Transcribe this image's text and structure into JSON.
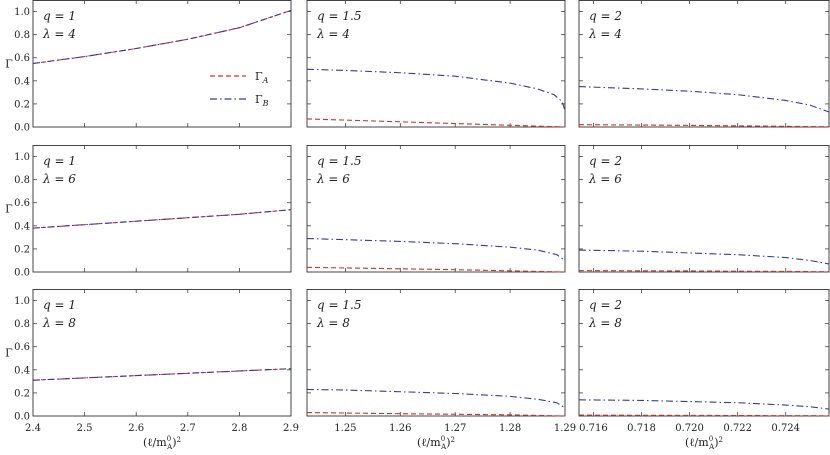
{
  "chart_data": {
    "type": "line",
    "ylabel": "Γ",
    "xlabel": "(ℓ/m_A^0)^2",
    "ylim": [
      0,
      1.1
    ],
    "yticks": [
      "0.0",
      "0.2",
      "0.4",
      "0.6",
      "0.8",
      "1.0"
    ],
    "legend": {
      "placement": "inside top-right of row 1, column 1",
      "entries": [
        {
          "key": "A",
          "base": "Γ",
          "sub": "A",
          "color": "#d03030",
          "dash": "dashed"
        },
        {
          "key": "B",
          "base": "Γ",
          "sub": "B",
          "color": "#3a3a9a",
          "dash": "dash-dot"
        }
      ]
    },
    "columns": [
      {
        "q": "1",
        "xlim": [
          2.4,
          2.9
        ],
        "xticks": [
          "2.4",
          "2.5",
          "2.6",
          "2.7",
          "2.8",
          "2.9"
        ]
      },
      {
        "q": "1.5",
        "xlim": [
          1.243,
          1.29
        ],
        "xticks": [
          "1.25",
          "1.26",
          "1.27",
          "1.28",
          "1.29"
        ]
      },
      {
        "q": "2",
        "xlim": [
          0.7154,
          0.7258
        ],
        "xticks": [
          "0.716",
          "0.718",
          "0.720",
          "0.722",
          "0.724"
        ]
      }
    ],
    "panels": [
      {
        "row": 0,
        "col": 0,
        "q_label": "q = 1",
        "lambda_label": "λ = 4",
        "series": [
          {
            "name": "Γ_A",
            "x": [
              2.4,
              2.5,
              2.6,
              2.7,
              2.8,
              2.9
            ],
            "y": [
              0.55,
              0.61,
              0.68,
              0.76,
              0.86,
              1.01
            ]
          },
          {
            "name": "Γ_B",
            "x": [
              2.4,
              2.5,
              2.6,
              2.7,
              2.8,
              2.9
            ],
            "y": [
              0.55,
              0.61,
              0.68,
              0.76,
              0.86,
              1.01
            ]
          }
        ]
      },
      {
        "row": 0,
        "col": 1,
        "q_label": "q = 1.5",
        "lambda_label": "λ = 4",
        "series": [
          {
            "name": "Γ_A",
            "x": [
              1.243,
              1.25,
              1.26,
              1.27,
              1.28,
              1.285,
              1.29
            ],
            "y": [
              0.07,
              0.06,
              0.045,
              0.03,
              0.015,
              0.008,
              0.0
            ]
          },
          {
            "name": "Γ_B",
            "x": [
              1.243,
              1.25,
              1.26,
              1.27,
              1.28,
              1.285,
              1.288,
              1.2895,
              1.29
            ],
            "y": [
              0.5,
              0.49,
              0.47,
              0.44,
              0.38,
              0.33,
              0.28,
              0.22,
              0.14
            ]
          }
        ]
      },
      {
        "row": 0,
        "col": 2,
        "q_label": "q = 2",
        "lambda_label": "λ = 4",
        "series": [
          {
            "name": "Γ_A",
            "x": [
              0.7154,
              0.718,
              0.72,
              0.722,
              0.724,
              0.7258
            ],
            "y": [
              0.02,
              0.017,
              0.014,
              0.01,
              0.006,
              0.002
            ]
          },
          {
            "name": "Γ_B",
            "x": [
              0.7154,
              0.718,
              0.72,
              0.722,
              0.724,
              0.725,
              0.7258
            ],
            "y": [
              0.35,
              0.33,
              0.31,
              0.28,
              0.23,
              0.19,
              0.13
            ]
          }
        ]
      },
      {
        "row": 1,
        "col": 0,
        "q_label": "q = 1",
        "lambda_label": "λ = 6",
        "series": [
          {
            "name": "Γ_A",
            "x": [
              2.4,
              2.5,
              2.6,
              2.7,
              2.8,
              2.9
            ],
            "y": [
              0.38,
              0.41,
              0.44,
              0.47,
              0.5,
              0.54
            ]
          },
          {
            "name": "Γ_B",
            "x": [
              2.4,
              2.5,
              2.6,
              2.7,
              2.8,
              2.9
            ],
            "y": [
              0.38,
              0.41,
              0.44,
              0.47,
              0.5,
              0.54
            ]
          }
        ]
      },
      {
        "row": 1,
        "col": 1,
        "q_label": "q = 1.5",
        "lambda_label": "λ = 6",
        "series": [
          {
            "name": "Γ_A",
            "x": [
              1.243,
              1.25,
              1.26,
              1.27,
              1.28,
              1.29
            ],
            "y": [
              0.04,
              0.035,
              0.028,
              0.02,
              0.01,
              0.0
            ]
          },
          {
            "name": "Γ_B",
            "x": [
              1.243,
              1.25,
              1.26,
              1.27,
              1.28,
              1.285,
              1.2885,
              1.29
            ],
            "y": [
              0.29,
              0.28,
              0.265,
              0.245,
              0.215,
              0.19,
              0.15,
              0.1
            ]
          }
        ]
      },
      {
        "row": 1,
        "col": 2,
        "q_label": "q = 2",
        "lambda_label": "λ = 6",
        "series": [
          {
            "name": "Γ_A",
            "x": [
              0.7154,
              0.72,
              0.724,
              0.7258
            ],
            "y": [
              0.012,
              0.009,
              0.005,
              0.002
            ]
          },
          {
            "name": "Γ_B",
            "x": [
              0.7154,
              0.718,
              0.72,
              0.722,
              0.724,
              0.725,
              0.7258
            ],
            "y": [
              0.19,
              0.18,
              0.165,
              0.15,
              0.125,
              0.1,
              0.07
            ]
          }
        ]
      },
      {
        "row": 2,
        "col": 0,
        "q_label": "q = 1",
        "lambda_label": "λ = 8",
        "series": [
          {
            "name": "Γ_A",
            "x": [
              2.4,
              2.5,
              2.6,
              2.7,
              2.8,
              2.9
            ],
            "y": [
              0.31,
              0.33,
              0.35,
              0.37,
              0.39,
              0.41
            ]
          },
          {
            "name": "Γ_B",
            "x": [
              2.4,
              2.5,
              2.6,
              2.7,
              2.8,
              2.9
            ],
            "y": [
              0.31,
              0.33,
              0.35,
              0.37,
              0.39,
              0.41
            ]
          }
        ]
      },
      {
        "row": 2,
        "col": 1,
        "q_label": "q = 1.5",
        "lambda_label": "λ = 8",
        "series": [
          {
            "name": "Γ_A",
            "x": [
              1.243,
              1.26,
              1.28,
              1.29
            ],
            "y": [
              0.03,
              0.02,
              0.01,
              0.0
            ]
          },
          {
            "name": "Γ_B",
            "x": [
              1.243,
              1.25,
              1.26,
              1.27,
              1.28,
              1.285,
              1.2885,
              1.29
            ],
            "y": [
              0.23,
              0.225,
              0.21,
              0.195,
              0.17,
              0.145,
              0.115,
              0.07
            ]
          }
        ]
      },
      {
        "row": 2,
        "col": 2,
        "q_label": "q = 2",
        "lambda_label": "λ = 8",
        "series": [
          {
            "name": "Γ_A",
            "x": [
              0.7154,
              0.72,
              0.7258
            ],
            "y": [
              0.008,
              0.005,
              0.002
            ]
          },
          {
            "name": "Γ_B",
            "x": [
              0.7154,
              0.718,
              0.72,
              0.722,
              0.724,
              0.725,
              0.7258
            ],
            "y": [
              0.14,
              0.135,
              0.125,
              0.115,
              0.095,
              0.08,
              0.06
            ]
          }
        ]
      }
    ]
  }
}
